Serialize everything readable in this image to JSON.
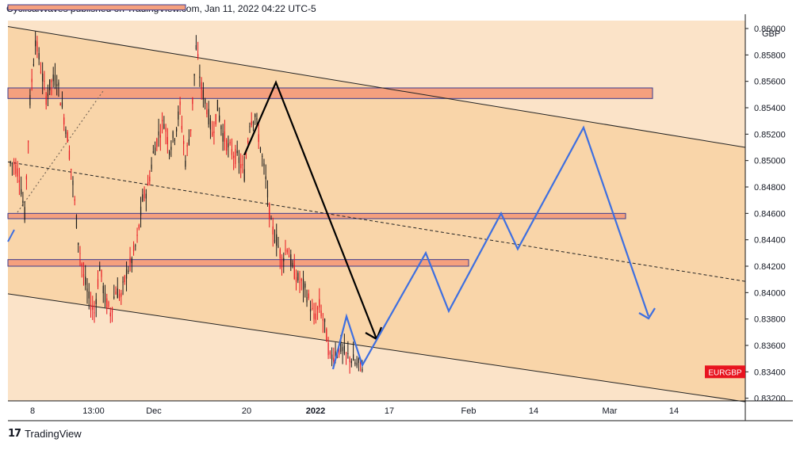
{
  "header": {
    "text": "CyclicalWaves published on TradingView.com, Jan 11, 2022 04:22 UTC-5"
  },
  "footer": {
    "logo_icon": "tradingview-logo-icon",
    "brand": "TradingView"
  },
  "colors": {
    "background_zone": "#fbe3c8",
    "channel_zone": "#f9d5a9",
    "candle_up": "#1a1a1a",
    "candle_down": "#e8141f",
    "resistance_fill": "#f5a07e",
    "resistance_border": "#3b3b8f",
    "projection_line": "#3e6fe0",
    "arrow_line": "#000000",
    "symbol_badge": "#e8141f"
  },
  "chart_data": {
    "type": "candlestick",
    "symbol": "EURGBP",
    "currency": "GBP",
    "y_axis": {
      "ticks": [
        "0.83200",
        "0.83400",
        "0.83600",
        "0.83800",
        "0.84000",
        "0.84200",
        "0.84400",
        "0.84600",
        "0.84800",
        "0.85000",
        "0.85200",
        "0.85400",
        "0.85600",
        "0.85800",
        "0.86000"
      ],
      "range": [
        0.8318,
        0.8606
      ]
    },
    "x_axis": {
      "labels": [
        "8",
        "13:00",
        "Dec",
        "20",
        "2022",
        "17",
        "Feb",
        "14",
        "Mar",
        "14"
      ],
      "bold_labels": [
        "2022"
      ]
    },
    "price_path": [
      [
        0,
        0.8498
      ],
      [
        1,
        0.8489
      ],
      [
        2,
        0.8459
      ],
      [
        3,
        0.8545
      ],
      [
        4,
        0.8592
      ],
      [
        5,
        0.857
      ],
      [
        6,
        0.8548
      ],
      [
        7,
        0.856
      ],
      [
        8,
        0.8562
      ],
      [
        9,
        0.854
      ],
      [
        10,
        0.8518
      ],
      [
        11,
        0.8482
      ],
      [
        12,
        0.844
      ],
      [
        13,
        0.8412
      ],
      [
        14,
        0.8395
      ],
      [
        15,
        0.8385
      ],
      [
        16,
        0.842
      ],
      [
        17,
        0.8395
      ],
      [
        18,
        0.8385
      ],
      [
        19,
        0.8402
      ],
      [
        20,
        0.8397
      ],
      [
        21,
        0.8415
      ],
      [
        22,
        0.8425
      ],
      [
        23,
        0.844
      ],
      [
        24,
        0.847
      ],
      [
        25,
        0.848
      ],
      [
        26,
        0.8505
      ],
      [
        27,
        0.852
      ],
      [
        28,
        0.853
      ],
      [
        29,
        0.851
      ],
      [
        30,
        0.852
      ],
      [
        31,
        0.854
      ],
      [
        32,
        0.85
      ],
      [
        33,
        0.8525
      ],
      [
        34,
        0.8585
      ],
      [
        35,
        0.8555
      ],
      [
        36,
        0.854
      ],
      [
        37,
        0.852
      ],
      [
        38,
        0.854
      ],
      [
        39,
        0.852
      ],
      [
        40,
        0.851
      ],
      [
        41,
        0.8505
      ],
      [
        42,
        0.85
      ],
      [
        43,
        0.849
      ],
      [
        44,
        0.853
      ],
      [
        45,
        0.8535
      ],
      [
        46,
        0.851
      ],
      [
        47,
        0.8485
      ],
      [
        48,
        0.845
      ],
      [
        49,
        0.844
      ],
      [
        50,
        0.8425
      ],
      [
        51,
        0.8435
      ],
      [
        52,
        0.8418
      ],
      [
        53,
        0.841
      ],
      [
        54,
        0.8405
      ],
      [
        55,
        0.8395
      ],
      [
        56,
        0.838
      ],
      [
        57,
        0.839
      ],
      [
        58,
        0.8375
      ],
      [
        59,
        0.835
      ],
      [
        60,
        0.8355
      ],
      [
        61,
        0.8358
      ],
      [
        62,
        0.8352
      ],
      [
        63,
        0.835
      ],
      [
        64,
        0.8345
      ],
      [
        65,
        0.8345
      ]
    ],
    "zones": [
      {
        "name": "resistance-1",
        "y_top": 0.8555,
        "y_bottom": 0.8547
      },
      {
        "name": "resistance-2",
        "y_top": 0.846,
        "y_bottom": 0.8456
      },
      {
        "name": "resistance-3",
        "y_top": 0.8425,
        "y_bottom": 0.842
      },
      {
        "name": "resistance-top",
        "y_top": 0.8618,
        "y_bottom": 0.8614
      }
    ],
    "channel": {
      "upper": [
        [
          0.86015
        ],
        [
          0.851
        ]
      ],
      "middle": [
        [
          0.8499
        ],
        [
          0.84085
        ]
      ],
      "lower": [
        [
          0.83991
        ],
        [
          0.83173
        ]
      ]
    },
    "projection_path": [
      [
        0.8342
      ],
      [
        0.8382
      ],
      [
        0.8345
      ],
      [
        0.843
      ],
      [
        0.8386
      ],
      [
        0.846
      ],
      [
        0.8433
      ],
      [
        0.8525
      ],
      [
        0.8382
      ]
    ],
    "symbol_label": "EURGBP"
  }
}
